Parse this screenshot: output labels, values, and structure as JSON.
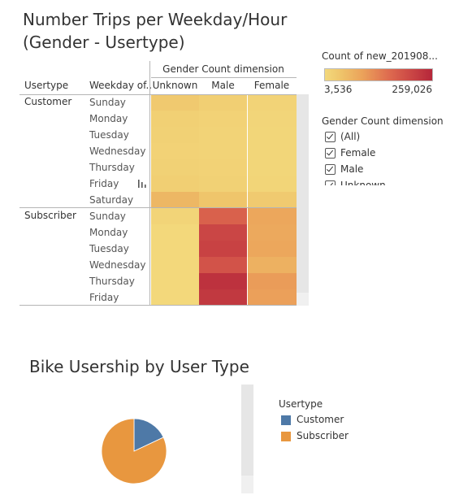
{
  "heatmap": {
    "title_line1": "Number Trips per Weekday/Hour",
    "title_line2": "(Gender - Usertype)",
    "column_group_header": "Gender Count dimension",
    "row_header_usertype": "Usertype",
    "row_header_weekday": "Weekday of..",
    "sort_icon": "sort-bars-icon"
  },
  "color_legend": {
    "title": "Count of new_201908...",
    "min_label": "3,536",
    "max_label": "259,026",
    "min_color": "#f3da7a",
    "max_color": "#b5263a"
  },
  "filter": {
    "title": "Gender Count dimension",
    "items": [
      {
        "label": "(All)",
        "checked": true
      },
      {
        "label": "Female",
        "checked": true
      },
      {
        "label": "Male",
        "checked": true
      },
      {
        "label": "Unknown",
        "checked": true
      }
    ]
  },
  "pie": {
    "title": "Bike Usership by User Type",
    "legend_title": "Usertype",
    "legend_items": [
      {
        "label": "Customer",
        "color": "#4e79a7"
      },
      {
        "label": "Subscriber",
        "color": "#e8973f"
      }
    ]
  },
  "chart_data": [
    {
      "type": "heatmap",
      "title": "Number Trips per Weekday/Hour (Gender - Usertype)",
      "columns": [
        "Unknown",
        "Male",
        "Female"
      ],
      "row_groups": [
        {
          "name": "Customer",
          "rows": [
            "Sunday",
            "Monday",
            "Tuesday",
            "Wednesday",
            "Thursday",
            "Friday",
            "Saturday"
          ]
        },
        {
          "name": "Subscriber",
          "rows": [
            "Sunday",
            "Monday",
            "Tuesday",
            "Wednesday",
            "Thursday",
            "Friday"
          ]
        }
      ],
      "values": [
        [
          32000,
          22000,
          15000
        ],
        [
          20000,
          16000,
          10000
        ],
        [
          18000,
          15000,
          9000
        ],
        [
          17000,
          15000,
          9000
        ],
        [
          18000,
          16000,
          9000
        ],
        [
          22000,
          18000,
          11000
        ],
        [
          62000,
          40000,
          30000
        ],
        [
          12000,
          170000,
          85000
        ],
        [
          6000,
          210000,
          82000
        ],
        [
          5000,
          215000,
          85000
        ],
        [
          6000,
          190000,
          70000
        ],
        [
          6000,
          240000,
          100000
        ],
        [
          6000,
          230000,
          95000
        ]
      ],
      "color_range": [
        3536,
        259026
      ]
    },
    {
      "type": "pie",
      "title": "Bike Usership by User Type",
      "categories": [
        "Customer",
        "Subscriber"
      ],
      "values": [
        18,
        82
      ]
    }
  ]
}
